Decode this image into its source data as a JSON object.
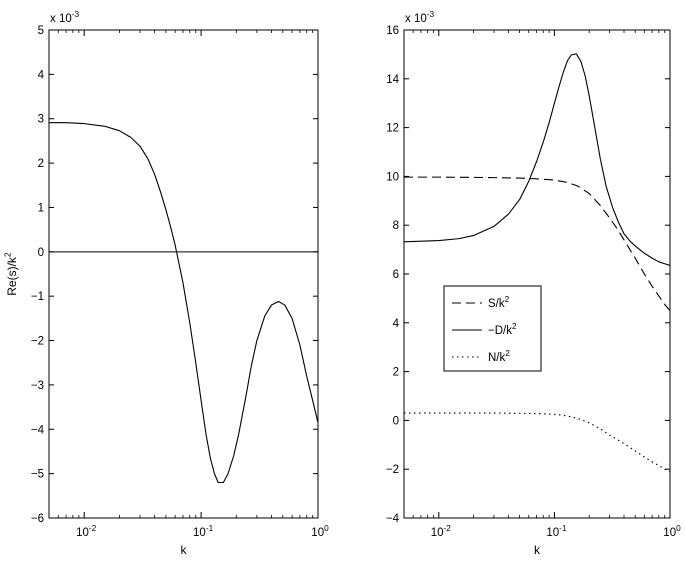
{
  "chart_data": [
    {
      "type": "line",
      "xscale": "log",
      "xlim": [
        0.005,
        1
      ],
      "ylim": [
        -6,
        5
      ],
      "y_multiplier": "x 10",
      "y_multiplier_exp": "-3",
      "xlabel": "k",
      "ylabel": "Re(s)/k",
      "ylabel_sup": "2",
      "yticks": [
        -6,
        -5,
        -4,
        -3,
        -2,
        -1,
        0,
        1,
        2,
        3,
        4,
        5
      ],
      "xticks": [
        {
          "value": 0.01,
          "base": "10",
          "exp": "-2"
        },
        {
          "value": 0.1,
          "base": "10",
          "exp": "-1"
        },
        {
          "value": 1,
          "base": "10",
          "exp": "0"
        }
      ],
      "reference_line": {
        "y": 0
      },
      "series": [
        {
          "style": "solid",
          "x": [
            0.005,
            0.007,
            0.01,
            0.015,
            0.02,
            0.025,
            0.03,
            0.035,
            0.04,
            0.045,
            0.05,
            0.055,
            0.06,
            0.07,
            0.08,
            0.09,
            0.1,
            0.11,
            0.12,
            0.13,
            0.14,
            0.155,
            0.17,
            0.19,
            0.21,
            0.24,
            0.27,
            0.3,
            0.35,
            0.4,
            0.46,
            0.52,
            0.6,
            0.7,
            0.8,
            0.9,
            1.0
          ],
          "y": [
            2.91,
            2.91,
            2.89,
            2.83,
            2.73,
            2.58,
            2.38,
            2.1,
            1.75,
            1.35,
            0.95,
            0.55,
            0.15,
            -0.7,
            -1.6,
            -2.5,
            -3.35,
            -4.1,
            -4.65,
            -5.0,
            -5.2,
            -5.2,
            -5.0,
            -4.6,
            -4.1,
            -3.3,
            -2.55,
            -2.0,
            -1.45,
            -1.2,
            -1.12,
            -1.2,
            -1.5,
            -2.1,
            -2.8,
            -3.35,
            -3.85
          ]
        }
      ]
    },
    {
      "type": "line",
      "xscale": "log",
      "xlim": [
        0.005,
        1
      ],
      "ylim": [
        -4,
        16
      ],
      "y_multiplier": "x 10",
      "y_multiplier_exp": "-3",
      "xlabel": "k",
      "yticks": [
        -4,
        -2,
        0,
        2,
        4,
        6,
        8,
        10,
        12,
        14,
        16
      ],
      "xticks": [
        {
          "value": 0.01,
          "base": "10",
          "exp": "-2"
        },
        {
          "value": 0.1,
          "base": "10",
          "exp": "-1"
        },
        {
          "value": 1,
          "base": "10",
          "exp": "0"
        }
      ],
      "legend": {
        "placement": "center-left",
        "entries": [
          {
            "label": "S/k",
            "sup": "2",
            "style": "dashed"
          },
          {
            "label": "−D/k",
            "sup": "2",
            "style": "solid"
          },
          {
            "label": "N/k",
            "sup": "2",
            "style": "dotted"
          }
        ]
      },
      "series": [
        {
          "name": "S/k2",
          "style": "dashed",
          "x": [
            0.005,
            0.01,
            0.02,
            0.03,
            0.05,
            0.07,
            0.1,
            0.13,
            0.16,
            0.2,
            0.25,
            0.3,
            0.35,
            0.4,
            0.45,
            0.5,
            0.6,
            0.7,
            0.8,
            0.9,
            1.0
          ],
          "y": [
            9.97,
            9.97,
            9.96,
            9.95,
            9.93,
            9.9,
            9.85,
            9.75,
            9.6,
            9.3,
            8.8,
            8.3,
            7.85,
            7.4,
            7.0,
            6.65,
            6.0,
            5.5,
            5.1,
            4.75,
            4.5
          ]
        },
        {
          "name": "−D/k2",
          "style": "solid",
          "x": [
            0.005,
            0.01,
            0.015,
            0.02,
            0.03,
            0.04,
            0.05,
            0.06,
            0.07,
            0.08,
            0.09,
            0.1,
            0.11,
            0.12,
            0.13,
            0.14,
            0.155,
            0.17,
            0.185,
            0.2,
            0.22,
            0.25,
            0.28,
            0.32,
            0.36,
            0.4,
            0.45,
            0.5,
            0.6,
            0.7,
            0.8,
            0.9,
            1.0
          ],
          "y": [
            7.32,
            7.37,
            7.45,
            7.58,
            7.95,
            8.45,
            9.05,
            9.8,
            10.6,
            11.4,
            12.2,
            13.0,
            13.7,
            14.3,
            14.75,
            14.98,
            15.02,
            14.7,
            14.1,
            13.3,
            12.2,
            10.7,
            9.6,
            8.7,
            8.1,
            7.65,
            7.35,
            7.15,
            6.85,
            6.65,
            6.5,
            6.42,
            6.35
          ]
        },
        {
          "name": "N/k2",
          "style": "dotted",
          "x": [
            0.005,
            0.01,
            0.02,
            0.03,
            0.05,
            0.07,
            0.1,
            0.13,
            0.16,
            0.2,
            0.25,
            0.3,
            0.4,
            0.5,
            0.6,
            0.7,
            0.8,
            0.9,
            1.0
          ],
          "y": [
            0.3,
            0.3,
            0.3,
            0.3,
            0.29,
            0.28,
            0.25,
            0.18,
            0.08,
            -0.1,
            -0.35,
            -0.6,
            -0.95,
            -1.25,
            -1.5,
            -1.7,
            -1.85,
            -2.0,
            -2.1
          ]
        }
      ]
    }
  ]
}
